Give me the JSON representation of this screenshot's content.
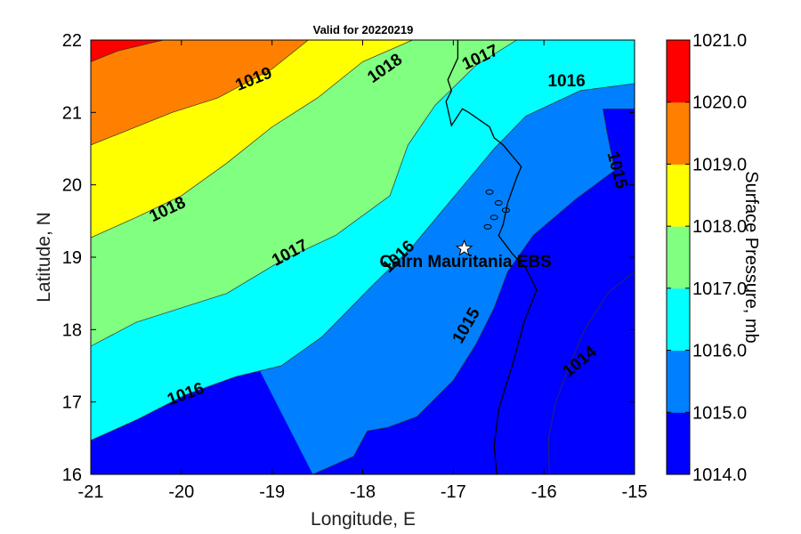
{
  "chart_data": {
    "type": "contour",
    "title": "Valid for 20220219",
    "xlabel": "Longitude, E",
    "ylabel": "Latitude, N",
    "xlim": [
      -21,
      -15
    ],
    "ylim": [
      16,
      22
    ],
    "x_ticks": [
      "-21",
      "-20",
      "-19",
      "-18",
      "-17",
      "-16",
      "-15"
    ],
    "y_ticks": [
      "16",
      "17",
      "18",
      "19",
      "20",
      "21",
      "22"
    ],
    "colorbar": {
      "label": "Surface Pressure, mb",
      "ticks": [
        "1014.0",
        "1015.0",
        "1016.0",
        "1017.0",
        "1018.0",
        "1019.0",
        "1020.0",
        "1021.0"
      ],
      "levels": [
        1014,
        1015,
        1016,
        1017,
        1018,
        1019,
        1020,
        1021
      ],
      "colors": [
        "#0000ff",
        "#0080ff",
        "#00ffff",
        "#80ff80",
        "#ffff00",
        "#ff8000",
        "#ff0000"
      ]
    },
    "contours": [
      {
        "level": 1014,
        "label": "1014",
        "points": [
          [
            -15.94,
            16.0
          ],
          [
            -15.95,
            16.5
          ],
          [
            -15.87,
            17.0
          ],
          [
            -15.72,
            17.5
          ],
          [
            -15.55,
            18.0
          ],
          [
            -15.3,
            18.5
          ],
          [
            -15.0,
            18.8
          ]
        ]
      },
      {
        "level": 1015,
        "label": "1015",
        "points": [
          [
            -18.55,
            16.0
          ],
          [
            -18.1,
            16.25
          ],
          [
            -17.95,
            16.6
          ],
          [
            -17.72,
            16.65
          ],
          [
            -17.4,
            16.8
          ],
          [
            -17.0,
            17.3
          ],
          [
            -16.75,
            17.8
          ],
          [
            -16.55,
            18.3
          ],
          [
            -16.4,
            18.8
          ],
          [
            -16.12,
            19.3
          ],
          [
            -15.65,
            19.8
          ],
          [
            -15.22,
            20.2
          ],
          [
            -15.3,
            20.7
          ],
          [
            -15.35,
            21.05
          ],
          [
            -15.0,
            21.05
          ]
        ]
      },
      {
        "level": 1016,
        "label": "1016",
        "points": [
          [
            -21.0,
            16.47
          ],
          [
            -20.5,
            16.75
          ],
          [
            -19.95,
            17.1
          ],
          [
            -19.4,
            17.35
          ],
          [
            -18.9,
            17.5
          ],
          [
            -18.45,
            17.9
          ],
          [
            -17.9,
            18.6
          ],
          [
            -17.45,
            19.15
          ],
          [
            -16.95,
            19.9
          ],
          [
            -16.55,
            20.5
          ],
          [
            -16.2,
            20.95
          ],
          [
            -15.6,
            21.3
          ],
          [
            -15.0,
            21.4
          ]
        ]
      },
      {
        "level": 1017,
        "label": "1017",
        "points": [
          [
            -21.0,
            17.77
          ],
          [
            -20.5,
            18.1
          ],
          [
            -20.0,
            18.3
          ],
          [
            -19.5,
            18.5
          ],
          [
            -18.9,
            18.95
          ],
          [
            -18.3,
            19.3
          ],
          [
            -17.7,
            19.85
          ],
          [
            -17.5,
            20.55
          ],
          [
            -17.2,
            21.1
          ],
          [
            -16.75,
            21.65
          ],
          [
            -16.3,
            22.0
          ]
        ]
      },
      {
        "level": 1018,
        "label": "1018",
        "points": [
          [
            -21.0,
            19.27
          ],
          [
            -20.5,
            19.55
          ],
          [
            -20.0,
            19.85
          ],
          [
            -19.5,
            20.3
          ],
          [
            -19.0,
            20.8
          ],
          [
            -18.5,
            21.2
          ],
          [
            -18.0,
            21.7
          ],
          [
            -17.45,
            22.0
          ]
        ]
      },
      {
        "level": 1019,
        "label": "1019",
        "points": [
          [
            -21.0,
            20.55
          ],
          [
            -20.6,
            20.75
          ],
          [
            -20.1,
            21.0
          ],
          [
            -19.6,
            21.2
          ],
          [
            -19.0,
            21.6
          ],
          [
            -18.6,
            22.0
          ]
        ]
      },
      {
        "level": 1020,
        "label": "",
        "points": [
          [
            -21.0,
            21.7
          ],
          [
            -20.7,
            21.85
          ],
          [
            -20.2,
            22.0
          ]
        ]
      }
    ],
    "contour_labels": [
      {
        "text": "1019",
        "lon": -19.2,
        "lat": 21.45,
        "angle": -22
      },
      {
        "text": "1018",
        "lon": -17.75,
        "lat": 21.6,
        "angle": -35
      },
      {
        "text": "1017",
        "lon": -16.7,
        "lat": 21.75,
        "angle": -25
      },
      {
        "text": "1016",
        "lon": -15.75,
        "lat": 21.42,
        "angle": 0
      },
      {
        "text": "1015",
        "lon": -15.2,
        "lat": 20.2,
        "angle": 75
      },
      {
        "text": "1018",
        "lon": -20.15,
        "lat": 19.65,
        "angle": -25
      },
      {
        "text": "1017",
        "lon": -18.8,
        "lat": 19.05,
        "angle": -28
      },
      {
        "text": "1016",
        "lon": -17.6,
        "lat": 19.0,
        "angle": -45
      },
      {
        "text": "1015",
        "lon": -16.85,
        "lat": 18.05,
        "angle": -60
      },
      {
        "text": "1014",
        "lon": -15.6,
        "lat": 17.55,
        "angle": -40
      },
      {
        "text": "1016",
        "lon": -19.95,
        "lat": 17.1,
        "angle": -20
      }
    ],
    "coastline": [
      [
        -16.52,
        16.0
      ],
      [
        -16.55,
        16.4
      ],
      [
        -16.5,
        16.9
      ],
      [
        -16.35,
        17.5
      ],
      [
        -16.22,
        18.1
      ],
      [
        -16.08,
        18.55
      ],
      [
        -16.2,
        18.85
      ],
      [
        -16.35,
        19.05
      ],
      [
        -16.5,
        19.3
      ],
      [
        -16.45,
        19.45
      ],
      [
        -16.4,
        19.75
      ],
      [
        -16.3,
        20.1
      ],
      [
        -16.25,
        20.25
      ],
      [
        -16.45,
        20.55
      ],
      [
        -16.55,
        20.65
      ],
      [
        -16.6,
        20.8
      ],
      [
        -16.83,
        21.0
      ],
      [
        -16.9,
        21.05
      ],
      [
        -17.02,
        20.82
      ],
      [
        -17.08,
        21.15
      ],
      [
        -17.02,
        21.3
      ],
      [
        -17.06,
        21.45
      ],
      [
        -16.95,
        21.75
      ],
      [
        -16.95,
        22.0
      ]
    ],
    "station": {
      "name": "Cairn Mauritania EBS",
      "lon": -16.88,
      "lat": 19.12,
      "marker": "star"
    }
  }
}
